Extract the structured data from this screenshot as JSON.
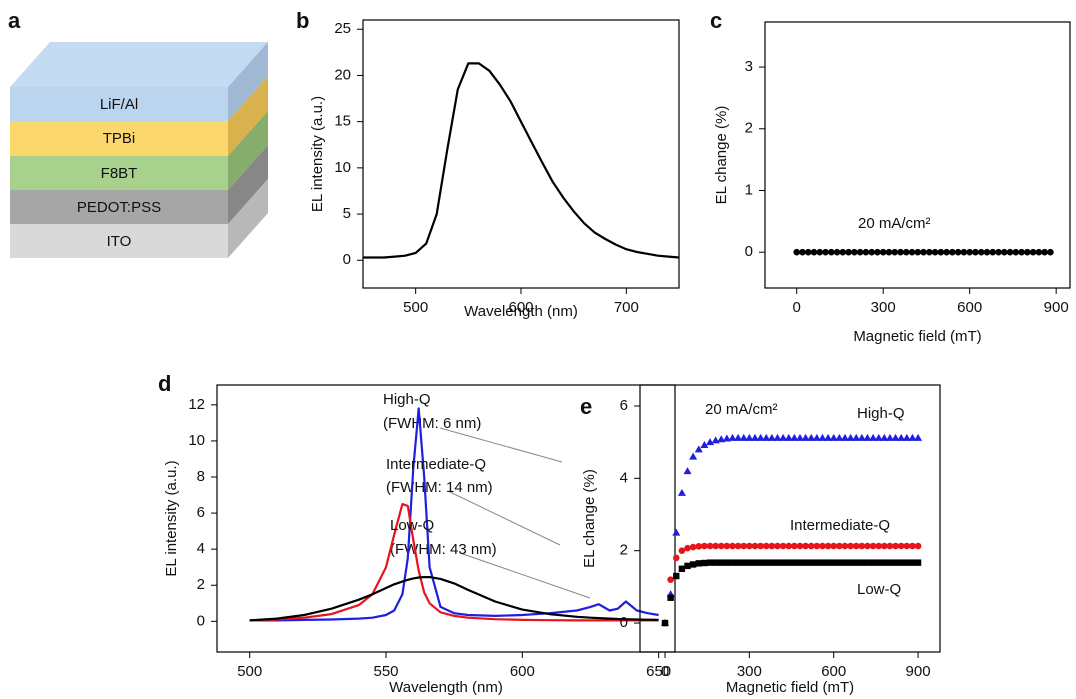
{
  "panel_labels": [
    "a",
    "b",
    "c",
    "d",
    "e"
  ],
  "device": {
    "layers": [
      "LiF/Al",
      "TPBi",
      "F8BT",
      "PEDOT:PSS",
      "ITO"
    ]
  },
  "chart_data": [
    {
      "type": "line",
      "xlabel": "Wavelength (nm)",
      "ylabel": "EL intensity (a.u.)",
      "xlim": [
        450,
        750
      ],
      "ylim": [
        -3,
        26
      ],
      "xticks": [
        500,
        600,
        700
      ],
      "yticks": [
        0,
        5,
        10,
        15,
        20,
        25
      ],
      "x": [
        450,
        460,
        470,
        480,
        490,
        500,
        510,
        520,
        530,
        540,
        550,
        560,
        570,
        580,
        590,
        600,
        610,
        620,
        630,
        640,
        650,
        660,
        670,
        680,
        690,
        700,
        710,
        720,
        730,
        740,
        750
      ],
      "series": [
        {
          "color": "#000000",
          "values": [
            0.3,
            0.3,
            0.3,
            0.4,
            0.5,
            0.8,
            1.8,
            5,
            12,
            18.5,
            21.3,
            21.3,
            20.5,
            19,
            17.2,
            15,
            12.8,
            10.6,
            8.5,
            6.8,
            5.3,
            4,
            3,
            2.3,
            1.7,
            1.2,
            0.9,
            0.7,
            0.5,
            0.4,
            0.3
          ]
        }
      ]
    },
    {
      "type": "scatter",
      "xlabel": "Magnetic field (mT)",
      "ylabel": "EL change (%)",
      "xlim": [
        -110,
        948
      ],
      "ylim": [
        -0.58,
        3.73
      ],
      "xticks": [
        0,
        300,
        600,
        900
      ],
      "yticks": [
        0,
        1,
        2,
        3
      ],
      "annotations": [
        "20 mA/cm²"
      ],
      "x": [
        0,
        20,
        40,
        60,
        80,
        100,
        120,
        140,
        160,
        180,
        200,
        220,
        240,
        260,
        280,
        300,
        320,
        340,
        360,
        380,
        400,
        420,
        440,
        460,
        480,
        500,
        520,
        540,
        560,
        580,
        600,
        620,
        640,
        660,
        680,
        700,
        720,
        740,
        760,
        780,
        800,
        820,
        840,
        860,
        880
      ],
      "series": [
        {
          "color": "#000000",
          "marker": "circle",
          "values": [
            0,
            0,
            0,
            0,
            0,
            0,
            0,
            0,
            0,
            0,
            0,
            0,
            0,
            0,
            0,
            0,
            0,
            0,
            0,
            0,
            0,
            0,
            0,
            0,
            0,
            0,
            0,
            0,
            0,
            0,
            0,
            0,
            0,
            0,
            0,
            0,
            0,
            0,
            0,
            0,
            0,
            0,
            0,
            0,
            0
          ]
        }
      ]
    },
    {
      "type": "line",
      "xlabel": "Wavelength (nm)",
      "ylabel": "EL intensity (a.u.)",
      "xlim": [
        488,
        656
      ],
      "ylim": [
        -1.7,
        13.1
      ],
      "xticks": [
        500,
        550,
        600,
        650
      ],
      "yticks": [
        0,
        2,
        4,
        6,
        8,
        10,
        12
      ],
      "annotations": [
        "(FWHM: 6 nm)",
        "(FWHM: 14 nm)",
        "(FWHM: 43 nm)"
      ],
      "x": [
        500,
        510,
        520,
        530,
        540,
        545,
        550,
        553,
        556,
        558,
        560,
        562,
        564,
        566,
        570,
        575,
        580,
        590,
        600,
        610,
        620,
        625,
        628,
        632,
        635,
        638,
        642,
        646,
        650
      ],
      "series": [
        {
          "name": "High-Q",
          "color": "#1f1fe0",
          "values": [
            0.05,
            0.05,
            0.08,
            0.1,
            0.15,
            0.2,
            0.35,
            0.6,
            1.5,
            3.5,
            8.5,
            11.8,
            8,
            3,
            0.8,
            0.45,
            0.35,
            0.3,
            0.35,
            0.45,
            0.6,
            0.8,
            0.95,
            0.6,
            0.7,
            1.1,
            0.6,
            0.45,
            0.35
          ]
        },
        {
          "name": "Intermediate-Q",
          "color": "#e8141c",
          "values": [
            0.05,
            0.1,
            0.2,
            0.4,
            0.9,
            1.5,
            3,
            4.8,
            6.5,
            6.4,
            4.5,
            2.8,
            1.6,
            1,
            0.5,
            0.3,
            0.2,
            0.12,
            0.08,
            0.06,
            0.05,
            0.05,
            0.05,
            0.05,
            0.05,
            0.05,
            0.05,
            0.05,
            0.05
          ]
        },
        {
          "name": "Low-Q",
          "color": "#000000",
          "values": [
            0.05,
            0.15,
            0.35,
            0.7,
            1.2,
            1.5,
            1.85,
            2.05,
            2.2,
            2.3,
            2.38,
            2.43,
            2.45,
            2.45,
            2.35,
            2.1,
            1.75,
            1.1,
            0.65,
            0.4,
            0.25,
            0.2,
            0.18,
            0.15,
            0.13,
            0.12,
            0.1,
            0.09,
            0.08
          ]
        }
      ]
    },
    {
      "type": "scatter",
      "xlabel": "Magnetic field (mT)",
      "ylabel": "EL change (%)",
      "xlim": [
        -89,
        978
      ],
      "ylim": [
        -0.8,
        6.58
      ],
      "xticks": [
        0,
        300,
        600,
        900
      ],
      "yticks": [
        0,
        2,
        4,
        6
      ],
      "annotations": [
        "20 mA/cm²"
      ],
      "x": [
        0,
        20,
        40,
        60,
        80,
        100,
        120,
        140,
        160,
        180,
        200,
        220,
        240,
        260,
        280,
        300,
        320,
        340,
        360,
        380,
        400,
        420,
        440,
        460,
        480,
        500,
        520,
        540,
        560,
        580,
        600,
        620,
        640,
        660,
        680,
        700,
        720,
        740,
        760,
        780,
        800,
        820,
        840,
        860,
        880,
        900
      ],
      "series": [
        {
          "name": "High-Q",
          "color": "#1f1fe0",
          "marker": "triangle",
          "values": [
            0,
            0.8,
            2.5,
            3.6,
            4.2,
            4.6,
            4.8,
            4.92,
            5.0,
            5.05,
            5.08,
            5.1,
            5.12,
            5.12,
            5.12,
            5.12,
            5.12,
            5.12,
            5.12,
            5.12,
            5.12,
            5.12,
            5.12,
            5.12,
            5.12,
            5.12,
            5.12,
            5.12,
            5.12,
            5.12,
            5.12,
            5.12,
            5.12,
            5.12,
            5.12,
            5.12,
            5.12,
            5.12,
            5.12,
            5.12,
            5.12,
            5.12,
            5.12,
            5.12,
            5.12,
            5.12
          ]
        },
        {
          "name": "Intermediate-Q",
          "color": "#e8141c",
          "marker": "circle",
          "values": [
            0,
            1.2,
            1.8,
            2.0,
            2.07,
            2.1,
            2.12,
            2.13,
            2.13,
            2.13,
            2.13,
            2.13,
            2.13,
            2.13,
            2.13,
            2.13,
            2.13,
            2.13,
            2.13,
            2.13,
            2.13,
            2.13,
            2.13,
            2.13,
            2.13,
            2.13,
            2.13,
            2.13,
            2.13,
            2.13,
            2.13,
            2.13,
            2.13,
            2.13,
            2.13,
            2.13,
            2.13,
            2.13,
            2.13,
            2.13,
            2.13,
            2.13,
            2.13,
            2.13,
            2.13,
            2.13
          ]
        },
        {
          "name": "Low-Q",
          "color": "#000000",
          "marker": "square",
          "values": [
            0,
            0.7,
            1.3,
            1.5,
            1.58,
            1.62,
            1.65,
            1.66,
            1.67,
            1.67,
            1.67,
            1.67,
            1.67,
            1.67,
            1.67,
            1.67,
            1.67,
            1.67,
            1.67,
            1.67,
            1.67,
            1.67,
            1.67,
            1.67,
            1.67,
            1.67,
            1.67,
            1.67,
            1.67,
            1.67,
            1.67,
            1.67,
            1.67,
            1.67,
            1.67,
            1.67,
            1.67,
            1.67,
            1.67,
            1.67,
            1.67,
            1.67,
            1.67,
            1.67,
            1.67,
            1.67
          ]
        }
      ]
    }
  ]
}
